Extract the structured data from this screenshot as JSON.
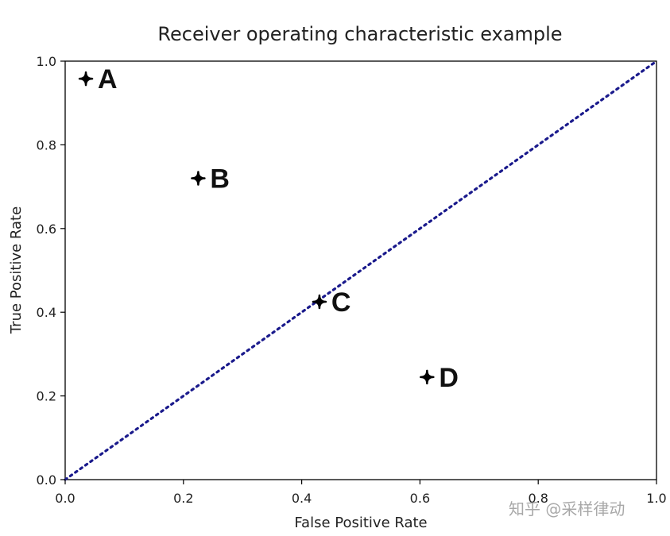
{
  "chart_data": {
    "type": "scatter",
    "title": "Receiver operating characteristic example",
    "xlabel": "False Positive Rate",
    "ylabel": "True Positive Rate",
    "xlim": [
      0.0,
      1.0
    ],
    "ylim": [
      0.0,
      1.0
    ],
    "xticks": [
      "0.0",
      "0.2",
      "0.4",
      "0.6",
      "0.8",
      "1.0"
    ],
    "yticks": [
      "0.0",
      "0.2",
      "0.4",
      "0.6",
      "0.8",
      "1.0"
    ],
    "grid": false,
    "points": [
      {
        "label": "A",
        "x": 0.035,
        "y": 0.958
      },
      {
        "label": "B",
        "x": 0.225,
        "y": 0.72
      },
      {
        "label": "C",
        "x": 0.43,
        "y": 0.425
      },
      {
        "label": "D",
        "x": 0.612,
        "y": 0.245
      }
    ],
    "diagonal": {
      "x": [
        0.0,
        1.0
      ],
      "y": [
        0.0,
        1.0
      ],
      "style": "dotted",
      "color": "#1a1a8c"
    },
    "marker_color": "#000000"
  },
  "watermark": {
    "text": "知乎 @采样律动"
  }
}
